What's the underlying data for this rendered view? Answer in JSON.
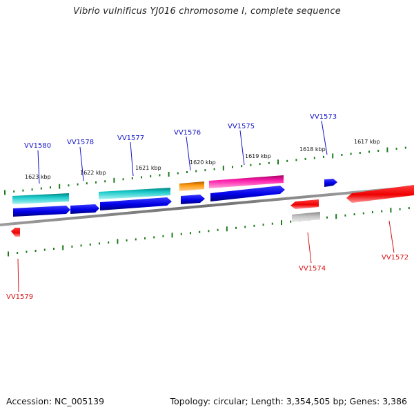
{
  "title": "Vibrio vulnificus YJ016 chromosome I, complete sequence",
  "footer": {
    "accession": "Accession: NC_005139",
    "topology": "Topology: circular; Length: 3,354,505 bp; Genes: 3,386"
  },
  "ruler_labels": [
    "1623 kbp",
    "1622 kbp",
    "1621 kbp",
    "1620 kbp",
    "1619 kbp",
    "1618 kbp",
    "1617 kbp"
  ],
  "gene_labels_forward": [
    "VV1580",
    "VV1578",
    "VV1577",
    "VV1576",
    "VV1575",
    "VV1573"
  ],
  "gene_labels_reverse": [
    "VV1579",
    "VV1574",
    "VV1572"
  ],
  "colors": {
    "forward_label": "#1010c8",
    "reverse_label": "#d81010",
    "tick": "#1a7a1a",
    "backbone": "#8a8a8a"
  }
}
